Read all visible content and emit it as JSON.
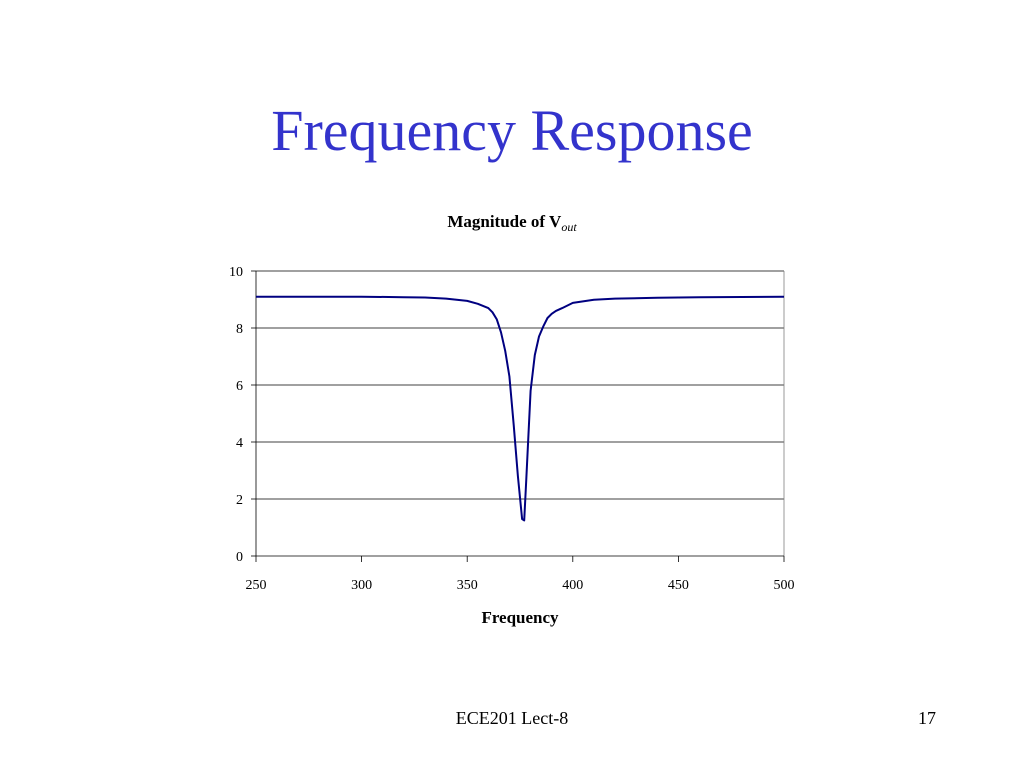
{
  "slide": {
    "title": "Frequency Response",
    "footer": "ECE201 Lect-8",
    "page_number": "17"
  },
  "colors": {
    "title": "#3333cc",
    "line": "#000080",
    "grid": "#000000"
  },
  "chart_data": {
    "type": "line",
    "title_main": "Magnitude of V",
    "title_subscript": "out",
    "xlabel": "Frequency",
    "ylabel": "",
    "xlim": [
      250,
      500
    ],
    "ylim": [
      0,
      10
    ],
    "x_ticks": [
      250,
      300,
      350,
      400,
      450,
      500
    ],
    "y_ticks": [
      0,
      2,
      4,
      6,
      8,
      10
    ],
    "grid": "horizontal",
    "series": [
      {
        "x": [
          250,
          300,
          320,
          330,
          340,
          350,
          355,
          360,
          362,
          364,
          366,
          368,
          370,
          372,
          374,
          376,
          377,
          378,
          380,
          382,
          384,
          386,
          388,
          390,
          392,
          395,
          400,
          410,
          420,
          440,
          450,
          460,
          500
        ],
        "y": [
          9.1,
          9.1,
          9.08,
          9.07,
          9.03,
          8.95,
          8.85,
          8.7,
          8.55,
          8.3,
          7.85,
          7.2,
          6.3,
          4.6,
          2.8,
          1.3,
          1.25,
          2.7,
          5.8,
          7.05,
          7.7,
          8.05,
          8.35,
          8.5,
          8.6,
          8.7,
          8.88,
          8.99,
          9.03,
          9.06,
          9.07,
          9.08,
          9.1
        ]
      }
    ]
  }
}
